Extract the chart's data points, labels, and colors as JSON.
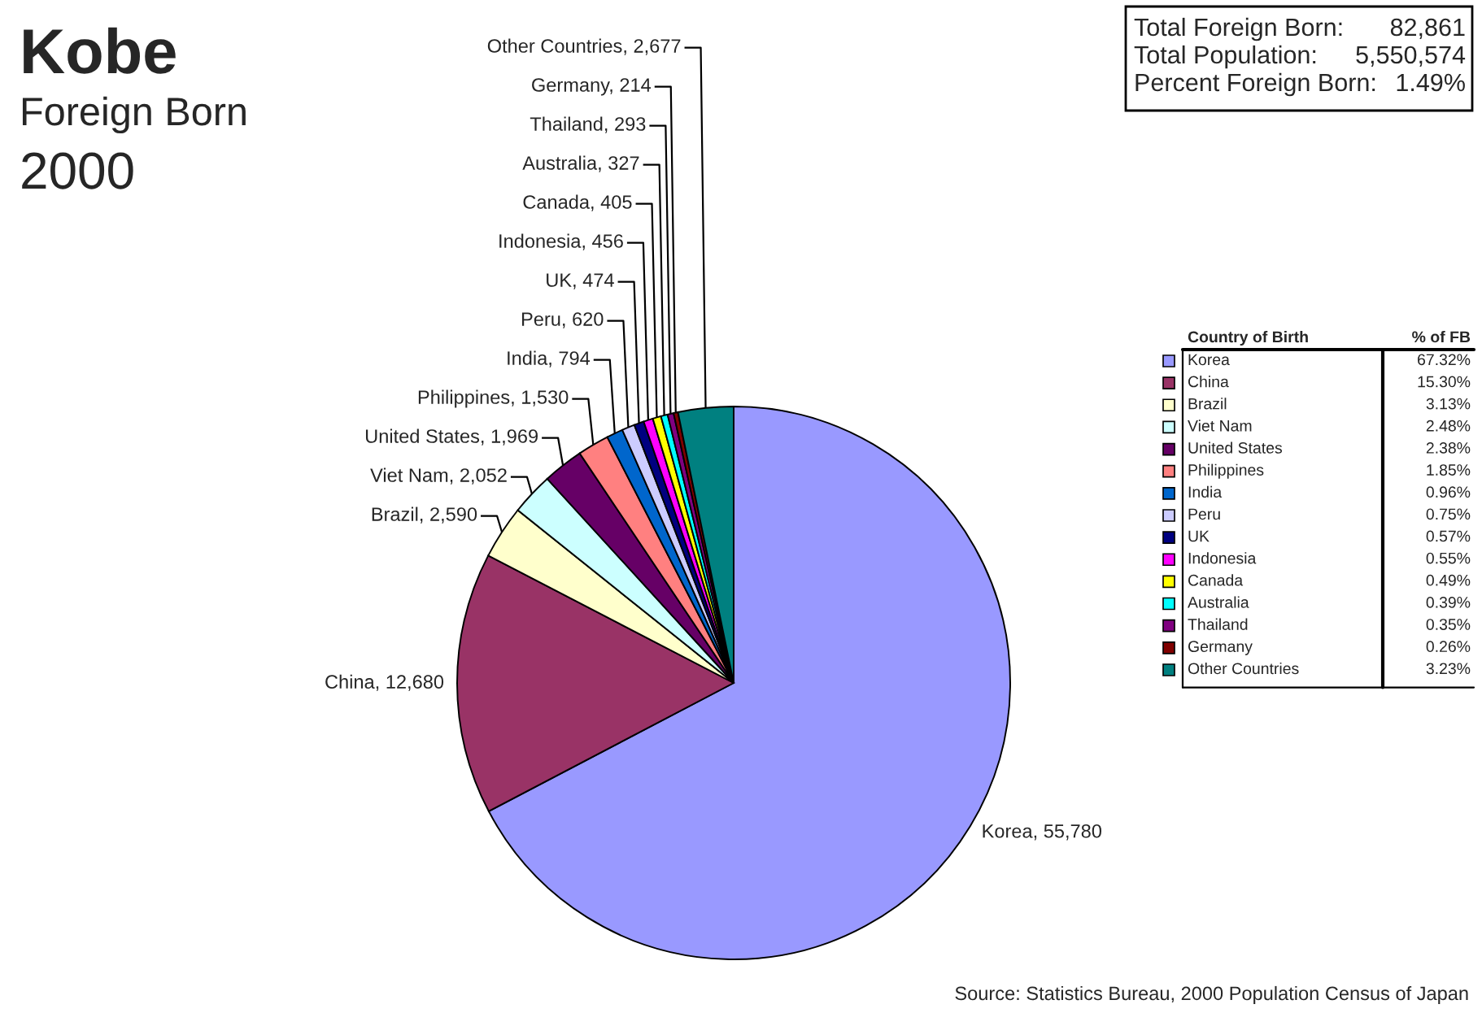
{
  "chart_data": {
    "type": "pie",
    "title": "Kobe",
    "subtitle": "Foreign Born",
    "categories": [
      "Korea",
      "China",
      "Brazil",
      "Viet Nam",
      "United States",
      "Philippines",
      "India",
      "Peru",
      "UK",
      "Indonesia",
      "Canada",
      "Australia",
      "Thailand",
      "Germany",
      "Other Countries"
    ],
    "values": [
      55780,
      12680,
      2590,
      2052,
      1969,
      1530,
      794,
      620,
      474,
      456,
      405,
      327,
      293,
      214,
      2677
    ],
    "value_labels": [
      "Korea, 55,780",
      "China, 12,680",
      "Brazil, 2,590",
      "Viet Nam, 2,052",
      "United States, 1,969",
      "Philippines, 1,530",
      "India, 794",
      "Peru, 620",
      "UK, 474",
      "Indonesia, 456",
      "Canada, 405",
      "Australia, 327",
      "Thailand, 293",
      "Germany, 214",
      "Other Countries, 2,677"
    ],
    "colors": [
      "#9999ff",
      "#993366",
      "#ffffcc",
      "#ccffff",
      "#660066",
      "#ff8080",
      "#0066cc",
      "#ccccff",
      "#000080",
      "#ff00ff",
      "#ffff00",
      "#00ffff",
      "#800080",
      "#800000",
      "#008080"
    ],
    "legend": "right",
    "legend_title": "Country of Birth",
    "annotations": [
      "2000",
      "Total Foreign Born:",
      "82,861",
      "Total Population:",
      "5,550,574",
      "Percent Foreign Born:",
      "1.49%",
      "% of FB",
      "67.32%",
      "15.30%",
      "3.13%",
      "2.48%",
      "2.38%",
      "1.85%",
      "0.96%",
      "0.75%",
      "0.57%",
      "0.55%",
      "0.49%",
      "0.39%",
      "0.35%",
      "0.26%",
      "3.23%",
      "Source: Statistics Bureau, 2000 Population Census of Japan"
    ]
  }
}
